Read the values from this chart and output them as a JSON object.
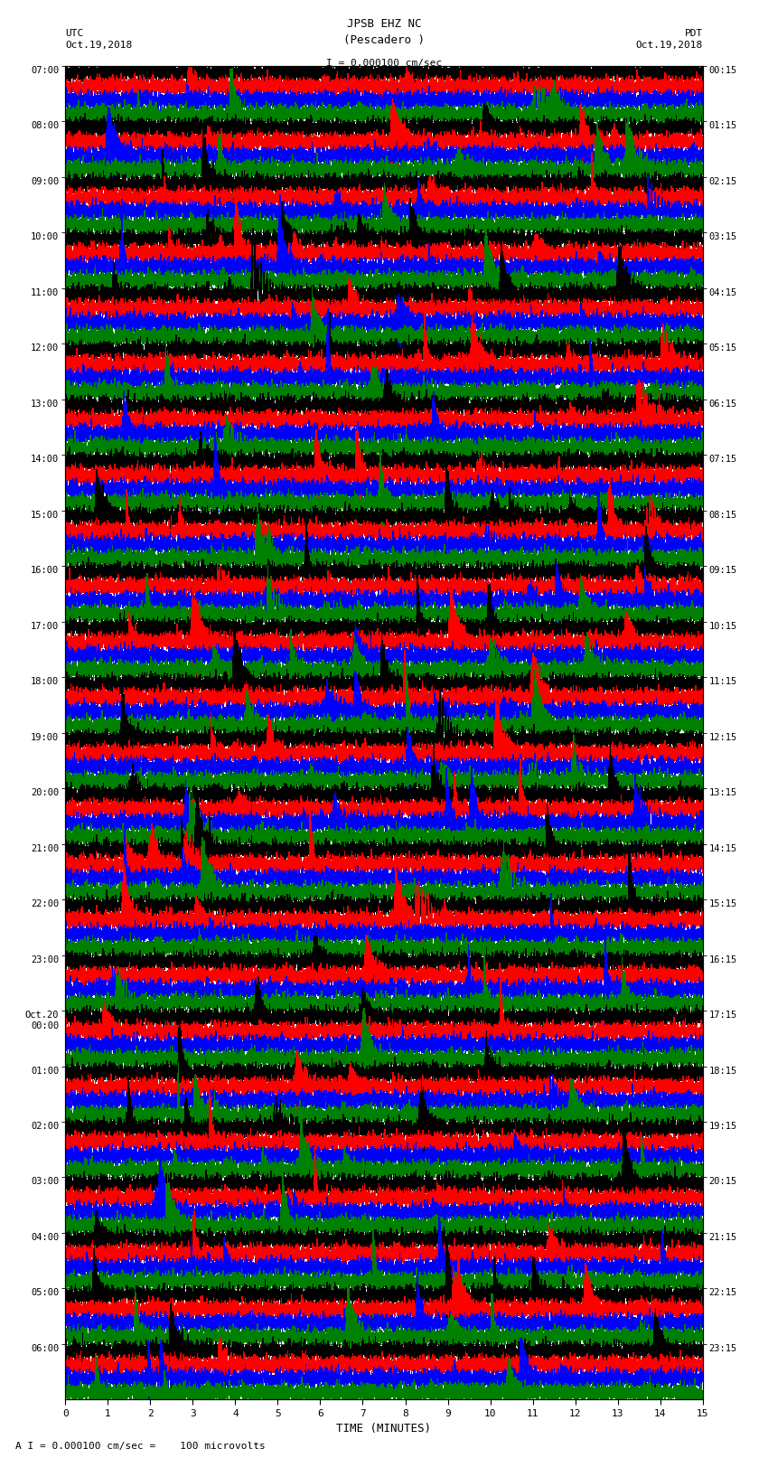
{
  "title_line1": "JPSB EHZ NC",
  "title_line2": "(Pescadero )",
  "scale_label": "I = 0.000100 cm/sec",
  "utc_label1": "UTC",
  "utc_label2": "Oct.19,2018",
  "pdt_label1": "PDT",
  "pdt_label2": "Oct.19,2018",
  "bottom_label": "A I = 0.000100 cm/sec =    100 microvolts",
  "xlabel": "TIME (MINUTES)",
  "left_times": [
    "07:00",
    "08:00",
    "09:00",
    "10:00",
    "11:00",
    "12:00",
    "13:00",
    "14:00",
    "15:00",
    "16:00",
    "17:00",
    "18:00",
    "19:00",
    "20:00",
    "21:00",
    "22:00",
    "23:00",
    "Oct.20\n00:00",
    "01:00",
    "02:00",
    "03:00",
    "04:00",
    "05:00",
    "06:00"
  ],
  "right_times": [
    "00:15",
    "01:15",
    "02:15",
    "03:15",
    "04:15",
    "05:15",
    "06:15",
    "07:15",
    "08:15",
    "09:15",
    "10:15",
    "11:15",
    "12:15",
    "13:15",
    "14:15",
    "15:15",
    "16:15",
    "17:15",
    "18:15",
    "19:15",
    "20:15",
    "21:15",
    "22:15",
    "23:15"
  ],
  "colors": [
    "black",
    "red",
    "blue",
    "green"
  ],
  "n_rows": 24,
  "traces_per_row": 4,
  "x_min": 0,
  "x_max": 15,
  "background_color": "white",
  "fig_width": 8.5,
  "fig_height": 16.13,
  "dpi": 100,
  "noise_amplitude": 0.3,
  "seed": 42
}
